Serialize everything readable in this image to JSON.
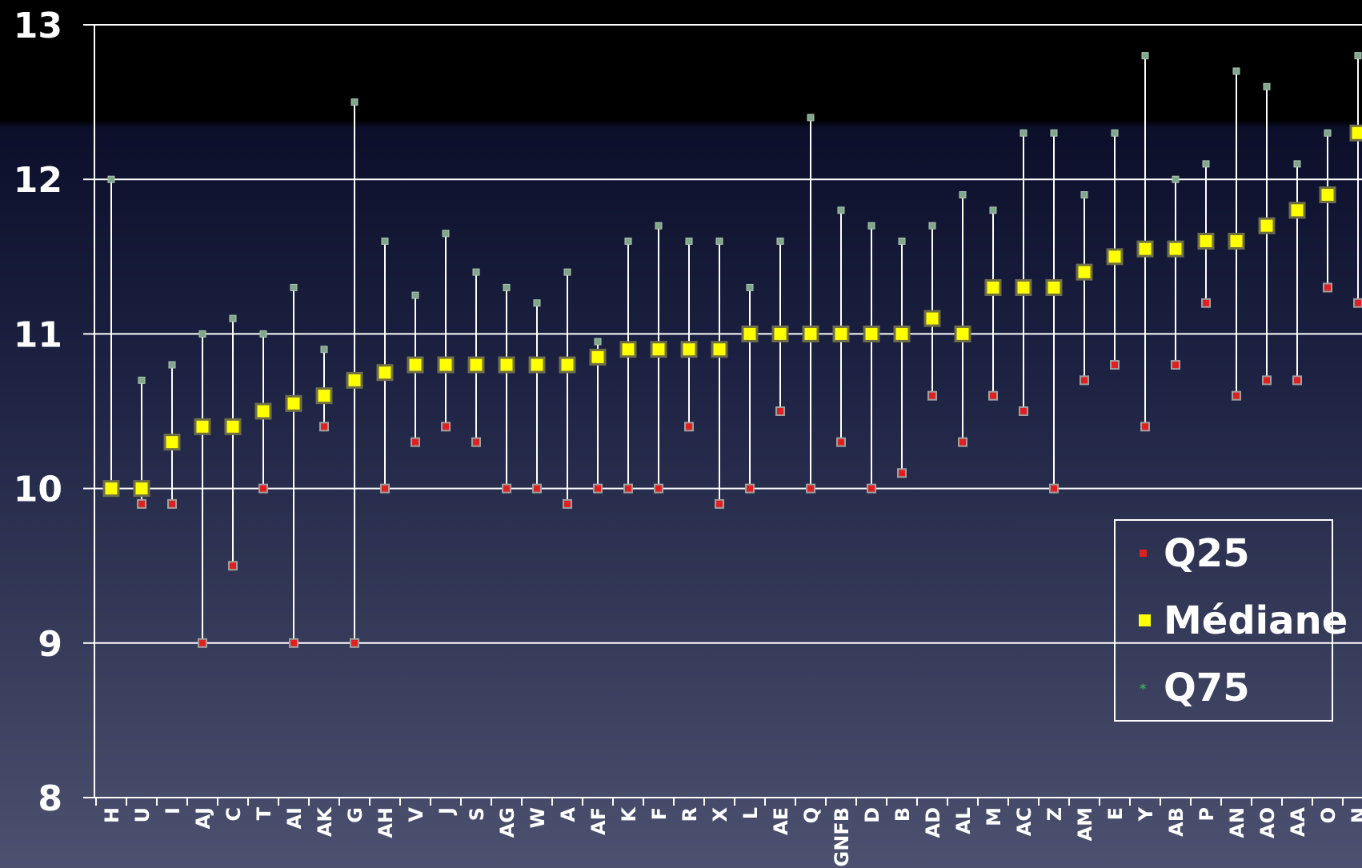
{
  "chart_data": {
    "type": "scatter",
    "categories": [
      "H",
      "U",
      "I",
      "AJ",
      "C",
      "T",
      "AI",
      "AK",
      "G",
      "AH",
      "V",
      "J",
      "S",
      "AG",
      "W",
      "A",
      "AF",
      "K",
      "F",
      "R",
      "X",
      "L",
      "AE",
      "Q",
      "GNFB",
      "D",
      "B",
      "AD",
      "AL",
      "M",
      "AC",
      "Z",
      "AM",
      "E",
      "Y",
      "AB",
      "P",
      "AN",
      "AO",
      "AA",
      "O",
      "N"
    ],
    "series": [
      {
        "name": "Q25",
        "color": "#e02020",
        "values": [
          10,
          9.9,
          9.9,
          9,
          9.5,
          10,
          9,
          10.4,
          9,
          10,
          10.3,
          10.4,
          10.3,
          10,
          10,
          9.9,
          10,
          10,
          10,
          10.4,
          9.9,
          10,
          10.5,
          10,
          10.3,
          10,
          10.1,
          10.6,
          10.3,
          10.6,
          10.5,
          10,
          10.7,
          10.8,
          10.4,
          10.8,
          11.2,
          10.6,
          10.7,
          10.7,
          11.3,
          11.2
        ]
      },
      {
        "name": "Médiane",
        "color": "#ffff00",
        "values": [
          10,
          10,
          10.3,
          10.4,
          10.4,
          10.5,
          10.55,
          10.6,
          10.7,
          10.75,
          10.8,
          10.8,
          10.8,
          10.8,
          10.8,
          10.8,
          10.85,
          10.9,
          10.9,
          10.9,
          10.9,
          11,
          11,
          11,
          11,
          11,
          11,
          11.1,
          11,
          11.3,
          11.3,
          11.3,
          11.4,
          11.5,
          11.55,
          11.55,
          11.6,
          11.6,
          11.7,
          11.8,
          11.9,
          12.3
        ]
      },
      {
        "name": "Q75",
        "color": "#7fa88a",
        "values": [
          12,
          10.7,
          10.8,
          11,
          11.1,
          11,
          11.3,
          10.9,
          12.5,
          11.6,
          11.25,
          11.65,
          11.4,
          11.3,
          11.2,
          11.4,
          10.95,
          11.6,
          11.7,
          11.6,
          11.6,
          11.3,
          11.6,
          12.4,
          11.8,
          11.7,
          11.6,
          11.7,
          11.9,
          11.8,
          12.3,
          12.3,
          11.9,
          12.3,
          12.8,
          12,
          12.1,
          12.7,
          12.6,
          12.1,
          12.3,
          12.8
        ]
      }
    ],
    "yticks": [
      8,
      9,
      10,
      11,
      12,
      13
    ],
    "ylim": [
      8,
      13
    ],
    "grid": true,
    "legend_position": "bottom-right",
    "xlabel": "",
    "ylabel": "",
    "title": ""
  }
}
